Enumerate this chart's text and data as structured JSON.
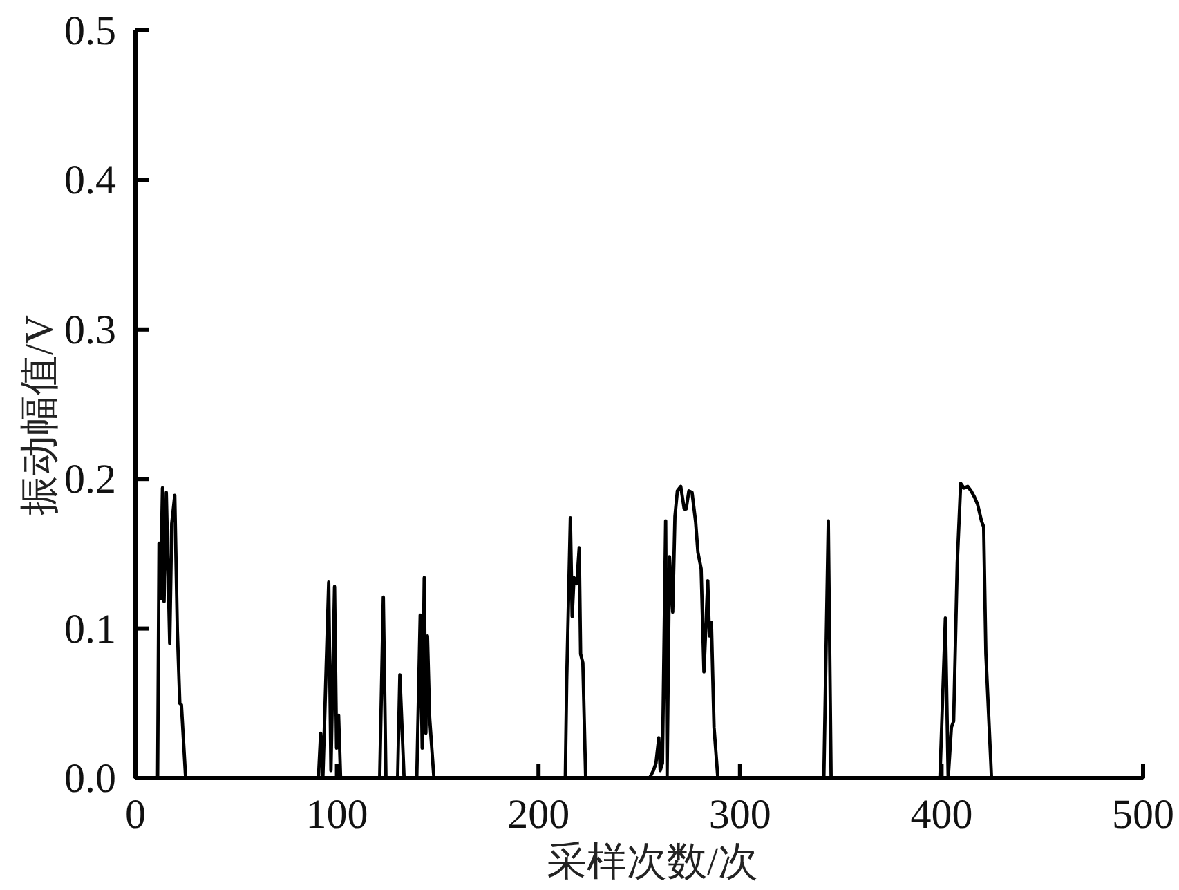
{
  "chart_data": {
    "type": "line",
    "xlabel": "采样次数/次",
    "ylabel": "振动幅值/V",
    "xlim": [
      0,
      500
    ],
    "ylim": [
      0,
      0.5
    ],
    "xticks": [
      0,
      100,
      200,
      300,
      400,
      500
    ],
    "yticks": [
      {
        "value": 0,
        "label": "0.0"
      },
      0.1,
      0.2,
      0.3,
      0.4,
      0.5
    ],
    "x": [
      0,
      11.0,
      11.7,
      12.4,
      13.4,
      14.2,
      15.3,
      17.0,
      18.0,
      19.5,
      20.8,
      22.0,
      22.8,
      24.0,
      24.9,
      90.8,
      91.9,
      93.0,
      95.9,
      97.0,
      98.8,
      99.8,
      100.8,
      101.8,
      121.2,
      123.0,
      124.3,
      130.1,
      131.2,
      133.3,
      139.6,
      141.3,
      142.3,
      143.3,
      144.1,
      144.9,
      146.0,
      148.1,
      213.3,
      214.0,
      215.8,
      216.7,
      217.6,
      219.0,
      220.2,
      220.9,
      222.0,
      223.4,
      255.1,
      257.0,
      258.3,
      259.7,
      260.4,
      261.5,
      263.1,
      263.8,
      265.0,
      266.6,
      267.7,
      268.9,
      270.6,
      272.3,
      273.3,
      274.6,
      276.2,
      278.0,
      279.1,
      280.7,
      282.1,
      284.0,
      284.8,
      285.8,
      287.1,
      289.0,
      341.6,
      343.8,
      345.2,
      399.2,
      401.9,
      403.3,
      404.9,
      406.0,
      407.8,
      409.5,
      411.1,
      413.0,
      414.7,
      416.3,
      417.9,
      419.8,
      420.9,
      422.0,
      424.8,
      500
    ],
    "series": [
      {
        "color": "#000000",
        "values": [
          0,
          0,
          0.157,
          0.12,
          0.194,
          0.118,
          0.191,
          0.09,
          0.17,
          0.189,
          0.098,
          0.05,
          0.049,
          0.021,
          0,
          0,
          0.03,
          0,
          0.131,
          0.005,
          0.128,
          0.02,
          0.042,
          0,
          0,
          0.121,
          0,
          0,
          0.069,
          0,
          0,
          0.109,
          0.02,
          0.134,
          0.03,
          0.095,
          0.04,
          0,
          0,
          0.066,
          0.174,
          0.108,
          0.134,
          0.13,
          0.154,
          0.083,
          0.077,
          0,
          0,
          0.005,
          0.01,
          0.027,
          0.005,
          0.01,
          0.172,
          0,
          0.148,
          0.111,
          0.175,
          0.192,
          0.195,
          0.18,
          0.18,
          0.192,
          0.191,
          0.171,
          0.151,
          0.14,
          0.071,
          0.132,
          0.095,
          0.104,
          0.034,
          0,
          0,
          0.172,
          0,
          0,
          0.107,
          0,
          0.034,
          0.038,
          0.144,
          0.197,
          0.194,
          0.195,
          0.192,
          0.188,
          0.183,
          0.172,
          0.168,
          0.083,
          0,
          0
        ]
      }
    ]
  }
}
